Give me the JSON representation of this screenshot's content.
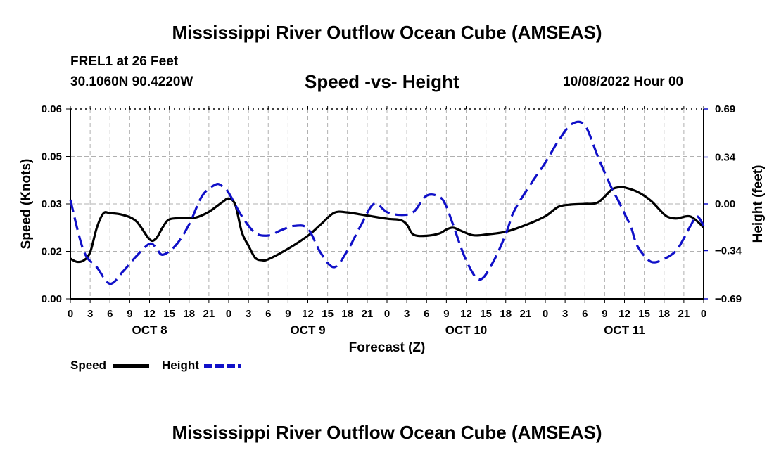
{
  "page": {
    "title": "Mississippi River Outflow Ocean Cube (AMSEAS)",
    "footer_title": "Mississippi River Outflow Ocean Cube (AMSEAS)",
    "station": "FREL1 at 26 Feet",
    "coords": "30.1060N  90.4220W",
    "date": "10/08/2022 Hour 00"
  },
  "chart_data": {
    "type": "line",
    "title": "Speed -vs- Height",
    "xlabel": "Forecast (Z)",
    "ylabel_left": "Speed (Knots)",
    "ylabel_right": "Height (feet)",
    "x_range_hours": [
      0,
      96
    ],
    "ylim_left": [
      0,
      0.06
    ],
    "ylim_right": [
      -0.69,
      0.69
    ],
    "left_ticks": [
      {
        "v": 0.0,
        "label": "0.00"
      },
      {
        "v": 0.015,
        "label": "0.02"
      },
      {
        "v": 0.03,
        "label": "0.03"
      },
      {
        "v": 0.045,
        "label": "0.05"
      },
      {
        "v": 0.06,
        "label": "0.06"
      }
    ],
    "right_ticks": [
      {
        "v": -0.69,
        "label": "−0.69"
      },
      {
        "v": -0.34,
        "label": "−0.34"
      },
      {
        "v": 0.0,
        "label": "0.00"
      },
      {
        "v": 0.34,
        "label": "0.34"
      },
      {
        "v": 0.69,
        "label": "0.69"
      }
    ],
    "x_tick_labels": [
      "0",
      "3",
      "6",
      "9",
      "12",
      "15",
      "18",
      "21",
      "0",
      "3",
      "6",
      "9",
      "12",
      "15",
      "18",
      "21",
      "0",
      "3",
      "6",
      "9",
      "12",
      "15",
      "18",
      "21",
      "0",
      "3",
      "6",
      "9",
      "12",
      "15",
      "18",
      "21",
      "0"
    ],
    "day_labels": [
      {
        "hour": 12,
        "label": "OCT 8"
      },
      {
        "hour": 36,
        "label": "OCT 9"
      },
      {
        "hour": 60,
        "label": "OCT 10"
      },
      {
        "hour": 84,
        "label": "OCT 11"
      }
    ],
    "legend": [
      {
        "name": "Speed",
        "color": "#000000"
      },
      {
        "name": "Height",
        "color": "#1010c8"
      }
    ],
    "series": [
      {
        "name": "Speed",
        "axis": "left",
        "color": "#000000",
        "x": [
          0,
          1,
          2,
          3,
          4,
          5,
          6,
          8,
          10,
          12,
          13,
          14,
          15,
          17,
          19,
          21,
          23,
          24,
          25,
          26,
          27,
          28,
          29,
          30,
          33,
          36,
          38,
          40,
          42,
          45,
          48,
          50,
          51,
          52,
          54,
          56,
          57,
          58,
          59,
          61,
          63,
          66,
          69,
          72,
          74,
          76,
          78,
          80,
          82,
          83,
          84,
          86,
          88,
          90,
          91,
          92,
          94,
          96
        ],
        "y": [
          0.0127,
          0.0117,
          0.0121,
          0.0147,
          0.0224,
          0.027,
          0.0271,
          0.0265,
          0.0245,
          0.0188,
          0.0191,
          0.0226,
          0.0251,
          0.0255,
          0.0257,
          0.0275,
          0.0305,
          0.0317,
          0.0297,
          0.021,
          0.0168,
          0.013,
          0.0122,
          0.0125,
          0.0158,
          0.0199,
          0.0236,
          0.0272,
          0.0273,
          0.0263,
          0.0253,
          0.0249,
          0.0235,
          0.0203,
          0.0199,
          0.0207,
          0.0219,
          0.0225,
          0.0217,
          0.0201,
          0.0203,
          0.0212,
          0.0233,
          0.0261,
          0.0291,
          0.0298,
          0.03,
          0.0305,
          0.0344,
          0.0352,
          0.0352,
          0.0338,
          0.031,
          0.0267,
          0.0256,
          0.0254,
          0.026,
          0.0226
        ]
      },
      {
        "name": "Height",
        "axis": "right",
        "color": "#1010c8",
        "x": [
          0,
          2,
          4,
          6,
          8,
          10,
          12,
          13,
          14,
          16,
          18,
          20,
          22,
          23,
          24,
          26,
          28,
          30,
          32,
          34,
          36,
          38,
          40,
          42,
          44,
          46,
          48,
          50,
          52,
          54,
          56,
          57,
          58,
          60,
          62,
          64,
          66,
          67,
          68,
          70,
          72,
          74,
          76,
          78,
          80,
          82,
          83,
          84,
          85,
          86,
          88,
          90,
          92,
          94,
          95,
          96
        ],
        "y": [
          0.03,
          -0.34,
          -0.46,
          -0.58,
          -0.49,
          -0.38,
          -0.29,
          -0.32,
          -0.37,
          -0.3,
          -0.15,
          0.06,
          0.14,
          0.13,
          0.08,
          -0.09,
          -0.21,
          -0.23,
          -0.19,
          -0.16,
          -0.18,
          -0.36,
          -0.46,
          -0.34,
          -0.16,
          0.0,
          -0.06,
          -0.08,
          -0.06,
          0.06,
          0.05,
          -0.02,
          -0.15,
          -0.41,
          -0.55,
          -0.43,
          -0.22,
          -0.08,
          0.01,
          0.16,
          0.3,
          0.46,
          0.58,
          0.57,
          0.34,
          0.12,
          0.03,
          -0.07,
          -0.17,
          -0.31,
          -0.42,
          -0.4,
          -0.33,
          -0.16,
          -0.09,
          -0.16
        ]
      }
    ]
  }
}
